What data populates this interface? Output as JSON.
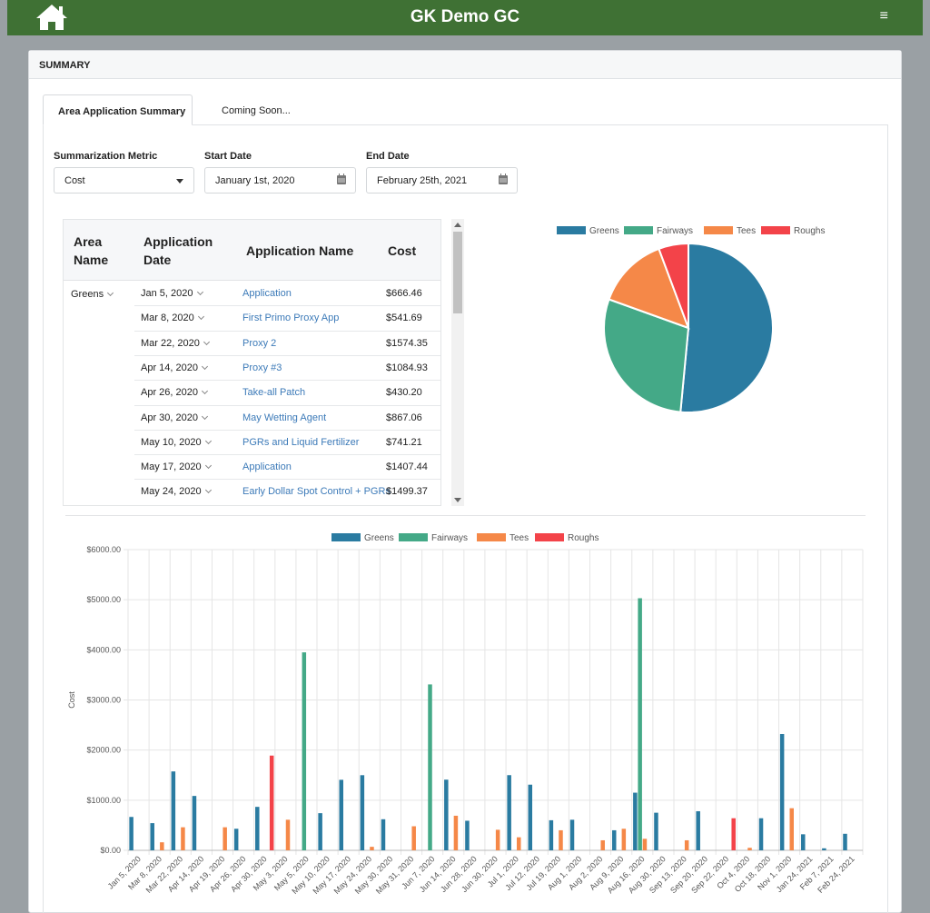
{
  "app": {
    "title": "GK Demo GC",
    "menu_glyph": "≡",
    "home_icon": "home-icon"
  },
  "summary": {
    "header": "SUMMARY"
  },
  "tabs": [
    {
      "label": "Area Application Summary",
      "active": true
    },
    {
      "label": "Coming Soon...",
      "active": false
    }
  ],
  "filters": {
    "metric_label": "Summarization Metric",
    "metric_value": "Cost",
    "start_label": "Start Date",
    "start_value": "January 1st, 2020",
    "end_label": "End Date",
    "end_value": "February 25th, 2021"
  },
  "table": {
    "headers": [
      "Area Name",
      "Application Date",
      "Application Name",
      "Cost"
    ],
    "area": "Greens",
    "rows": [
      {
        "date": "Jan 5, 2020",
        "name": "Application",
        "cost": "$666.46"
      },
      {
        "date": "Mar 8, 2020",
        "name": "First Primo Proxy App",
        "cost": "$541.69"
      },
      {
        "date": "Mar 22, 2020",
        "name": "Proxy 2",
        "cost": "$1574.35"
      },
      {
        "date": "Apr 14, 2020",
        "name": "Proxy #3",
        "cost": "$1084.93"
      },
      {
        "date": "Apr 26, 2020",
        "name": "Take-all Patch",
        "cost": "$430.20"
      },
      {
        "date": "Apr 30, 2020",
        "name": "May Wetting Agent",
        "cost": "$867.06"
      },
      {
        "date": "May 10, 2020",
        "name": "PGRs and Liquid Fertilizer",
        "cost": "$741.21"
      },
      {
        "date": "May 17, 2020",
        "name": "Application",
        "cost": "$1407.44"
      },
      {
        "date": "May 24, 2020",
        "name": "Early Dollar Spot Control + PGRs",
        "cost": "$1499.37"
      }
    ]
  },
  "colors": {
    "greens": "#2a7ba1",
    "fairways": "#44a987",
    "tees": "#f58848",
    "roughs": "#f34349"
  },
  "chart_data": [
    {
      "type": "pie",
      "legend": [
        "Greens",
        "Fairways",
        "Tees",
        "Roughs"
      ],
      "legend_position": "top",
      "values": [
        51.5,
        29.0,
        13.8,
        5.7
      ]
    },
    {
      "type": "bar",
      "ylabel": "Cost",
      "ylim": [
        0,
        6000
      ],
      "yticks": [
        "$0.00",
        "$1000.00",
        "$2000.00",
        "$3000.00",
        "$4000.00",
        "$5000.00",
        "$6000.00"
      ],
      "legend_position": "top",
      "grid": true,
      "categories": [
        "Jan 5, 2020",
        "Mar 8, 2020",
        "Mar 22, 2020",
        "Apr 14, 2020",
        "Apr 19, 2020",
        "Apr 26, 2020",
        "Apr 30, 2020",
        "May 3, 2020",
        "May 5, 2020",
        "May 10, 2020",
        "May 17, 2020",
        "May 24, 2020",
        "May 30, 2020",
        "May 31, 2020",
        "Jun 7, 2020",
        "Jun 14, 2020",
        "Jun 28, 2020",
        "Jun 30, 2020",
        "Jul 1, 2020",
        "Jul 12, 2020",
        "Jul 19, 2020",
        "Aug 1, 2020",
        "Aug 2, 2020",
        "Aug 9, 2020",
        "Aug 16, 2020",
        "Aug 30, 2020",
        "Sep 13, 2020",
        "Sep 20, 2020",
        "Sep 22, 2020",
        "Oct 4, 2020",
        "Oct 18, 2020",
        "Nov 1, 2020",
        "Jan 24, 2021",
        "Feb 7, 2021",
        "Feb 24, 2021"
      ],
      "series": [
        {
          "name": "Greens",
          "values": [
            666,
            542,
            1574,
            1085,
            0,
            430,
            867,
            0,
            0,
            741,
            1407,
            1499,
            620,
            0,
            0,
            1410,
            590,
            0,
            1500,
            1310,
            600,
            610,
            0,
            400,
            1150,
            750,
            0,
            780,
            0,
            0,
            640,
            2320,
            320,
            40,
            330
          ]
        },
        {
          "name": "Fairways",
          "values": [
            0,
            0,
            0,
            0,
            0,
            0,
            0,
            0,
            3950,
            0,
            0,
            0,
            0,
            0,
            3310,
            0,
            0,
            0,
            0,
            0,
            0,
            0,
            0,
            0,
            5030,
            0,
            0,
            0,
            0,
            0,
            0,
            0,
            0,
            0,
            0
          ]
        },
        {
          "name": "Tees",
          "values": [
            0,
            160,
            460,
            0,
            460,
            0,
            0,
            610,
            0,
            0,
            0,
            70,
            0,
            480,
            0,
            690,
            0,
            410,
            260,
            0,
            400,
            0,
            200,
            430,
            230,
            0,
            200,
            0,
            0,
            50,
            0,
            840,
            0,
            0,
            0
          ]
        },
        {
          "name": "Roughs",
          "values": [
            0,
            0,
            0,
            0,
            0,
            0,
            1890,
            0,
            0,
            0,
            0,
            0,
            0,
            0,
            0,
            0,
            0,
            0,
            0,
            0,
            0,
            0,
            0,
            0,
            0,
            0,
            0,
            0,
            640,
            0,
            0,
            0,
            0,
            0,
            0
          ]
        }
      ]
    }
  ]
}
